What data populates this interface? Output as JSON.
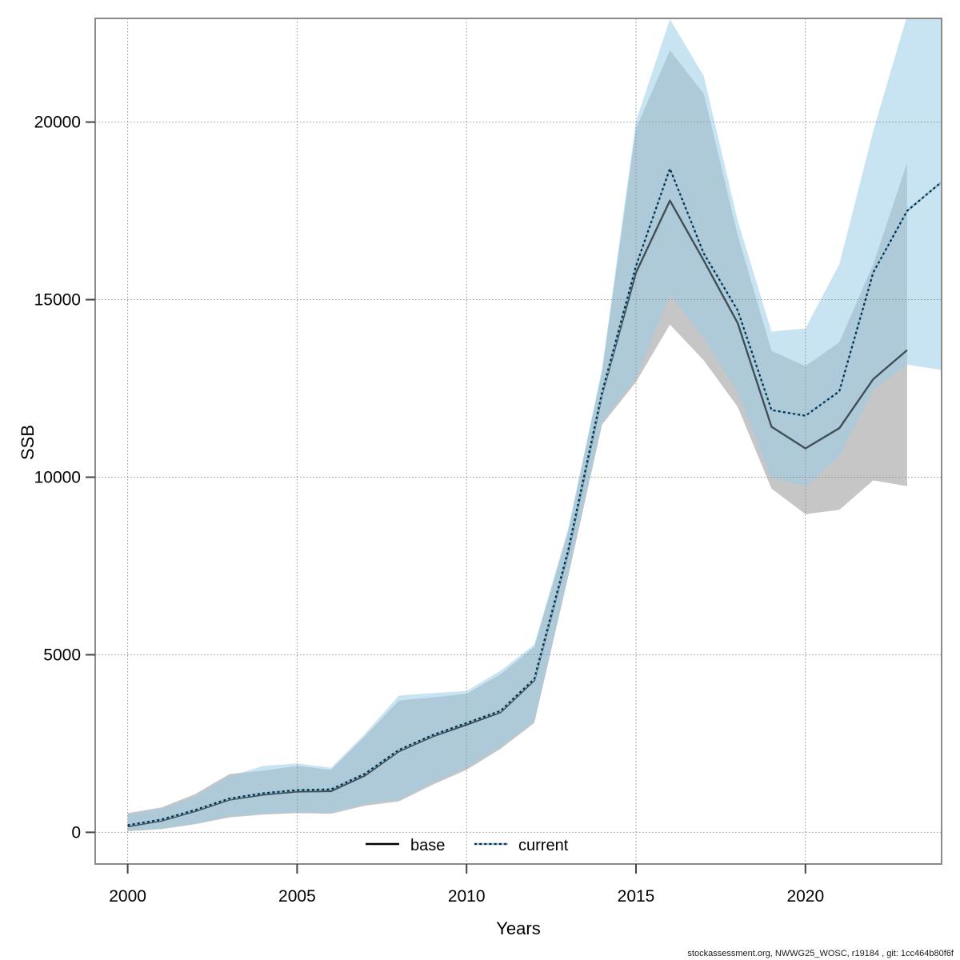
{
  "figure": {
    "xlabel": "Years",
    "ylabel": "SSB",
    "footer": "stockassessment.org, NWWG25_WOSC, r19184 , git: 1cc464b80f6f"
  },
  "legend": [
    {
      "label": "base",
      "style": "solid"
    },
    {
      "label": "current",
      "style": "dotted"
    }
  ],
  "colors": {
    "base_line": "#3f4f58",
    "base_band": "rgba(119,119,119,0.42)",
    "current_dash": "#0d2433",
    "current_underlay": "#8cc0dc",
    "current_band": "rgba(155,206,231,0.55)",
    "grid": "#909090",
    "border": "#8a8a8a",
    "tick": "#444444"
  },
  "chart_data": {
    "type": "line",
    "title": "",
    "xlabel": "Years",
    "ylabel": "SSB",
    "xlim": [
      1999,
      2024
    ],
    "ylim": [
      -900,
      22900
    ],
    "x_ticks": [
      2000,
      2005,
      2010,
      2015,
      2020
    ],
    "y_ticks": [
      0,
      5000,
      10000,
      15000,
      20000
    ],
    "grid": true,
    "legend_position": "bottom-center",
    "series": [
      {
        "name": "base",
        "line": "solid",
        "years": [
          2000,
          2001,
          2002,
          2003,
          2004,
          2005,
          2006,
          2007,
          2008,
          2009,
          2010,
          2011,
          2012,
          2013,
          2014,
          2015,
          2016,
          2017,
          2018,
          2019,
          2020,
          2021,
          2022,
          2023
        ],
        "mean": [
          170,
          330,
          600,
          920,
          1060,
          1150,
          1160,
          1600,
          2280,
          2700,
          3030,
          3380,
          4280,
          7900,
          12340,
          15760,
          17790,
          16100,
          14340,
          11420,
          10810,
          11380,
          12760,
          13580
        ],
        "lo": [
          30,
          90,
          230,
          420,
          500,
          540,
          520,
          750,
          870,
          1340,
          1760,
          2350,
          3080,
          7200,
          11480,
          12680,
          14300,
          13290,
          11980,
          9680,
          8960,
          9080,
          9910,
          9750
        ],
        "hi": [
          540,
          700,
          1080,
          1640,
          1740,
          1870,
          1760,
          2700,
          3710,
          3800,
          3900,
          4450,
          5220,
          8480,
          12980,
          19820,
          22020,
          20800,
          16820,
          13560,
          13130,
          13800,
          16000,
          18850
        ]
      },
      {
        "name": "current",
        "line": "dotted",
        "years": [
          2000,
          2001,
          2002,
          2003,
          2004,
          2005,
          2006,
          2007,
          2008,
          2009,
          2010,
          2011,
          2012,
          2013,
          2014,
          2015,
          2016,
          2017,
          2018,
          2019,
          2020,
          2021,
          2022,
          2023,
          2024
        ],
        "mean": [
          200,
          360,
          630,
          950,
          1100,
          1190,
          1210,
          1650,
          2320,
          2740,
          3080,
          3420,
          4320,
          7950,
          12390,
          15950,
          18690,
          16300,
          14700,
          11890,
          11730,
          12420,
          15760,
          17500,
          18300
        ],
        "lo": [
          50,
          110,
          250,
          450,
          530,
          570,
          560,
          790,
          920,
          1400,
          1820,
          2410,
          3130,
          7270,
          11560,
          12790,
          15130,
          13920,
          12390,
          9980,
          9750,
          10580,
          12460,
          13170,
          13020
        ],
        "hi": [
          500,
          660,
          1020,
          1580,
          1870,
          1940,
          1820,
          2770,
          3850,
          3920,
          3980,
          4550,
          5290,
          8560,
          13060,
          20030,
          22900,
          21300,
          17230,
          14100,
          14190,
          16000,
          19750,
          23000,
          24500
        ]
      }
    ]
  }
}
